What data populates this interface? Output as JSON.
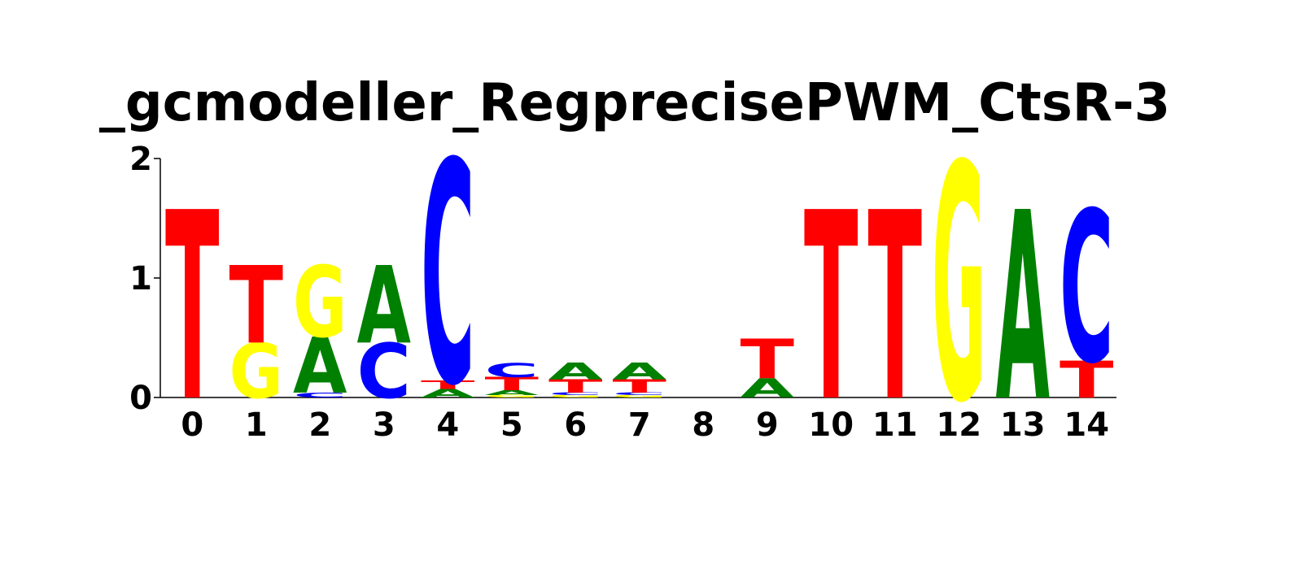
{
  "chart_data": {
    "type": "sequence-logo",
    "title": "_gcmodeller_RegprecisePWM_CtsR-3",
    "xlabel": "",
    "ylabel": "",
    "ylim": [
      0,
      2
    ],
    "y_ticks": [
      0,
      1,
      2
    ],
    "x_ticks": [
      "0",
      "1",
      "2",
      "3",
      "4",
      "5",
      "6",
      "7",
      "8",
      "9",
      "10",
      "11",
      "12",
      "13",
      "14"
    ],
    "letter_colors": {
      "A": "#008000",
      "C": "#0000ff",
      "G": "#ffff00",
      "T": "#ff0000"
    },
    "positions": [
      {
        "x": 0,
        "letters": [
          {
            "letter": "T",
            "height": 1.58
          }
        ]
      },
      {
        "x": 1,
        "letters": [
          {
            "letter": "G",
            "height": 0.46
          },
          {
            "letter": "T",
            "height": 0.65
          }
        ]
      },
      {
        "x": 2,
        "letters": [
          {
            "letter": "C",
            "height": 0.04
          },
          {
            "letter": "A",
            "height": 0.47
          },
          {
            "letter": "G",
            "height": 0.6
          }
        ]
      },
      {
        "x": 3,
        "letters": [
          {
            "letter": "C",
            "height": 0.46
          },
          {
            "letter": "A",
            "height": 0.65
          }
        ]
      },
      {
        "x": 4,
        "letters": [
          {
            "letter": "A",
            "height": 0.07
          },
          {
            "letter": "T",
            "height": 0.07
          },
          {
            "letter": "C",
            "height": 1.86
          }
        ]
      },
      {
        "x": 5,
        "letters": [
          {
            "letter": "G",
            "height": 0.02
          },
          {
            "letter": "A",
            "height": 0.04
          },
          {
            "letter": "T",
            "height": 0.11
          },
          {
            "letter": "C",
            "height": 0.12
          }
        ]
      },
      {
        "x": 6,
        "letters": [
          {
            "letter": "G",
            "height": 0.02
          },
          {
            "letter": "C",
            "height": 0.02
          },
          {
            "letter": "T",
            "height": 0.11
          },
          {
            "letter": "A",
            "height": 0.14
          }
        ]
      },
      {
        "x": 7,
        "letters": [
          {
            "letter": "G",
            "height": 0.02
          },
          {
            "letter": "C",
            "height": 0.02
          },
          {
            "letter": "T",
            "height": 0.11
          },
          {
            "letter": "A",
            "height": 0.14
          }
        ]
      },
      {
        "x": 8,
        "letters": []
      },
      {
        "x": 9,
        "letters": [
          {
            "letter": "A",
            "height": 0.16
          },
          {
            "letter": "T",
            "height": 0.33
          }
        ]
      },
      {
        "x": 10,
        "letters": [
          {
            "letter": "T",
            "height": 1.58
          }
        ]
      },
      {
        "x": 11,
        "letters": [
          {
            "letter": "T",
            "height": 1.58
          }
        ]
      },
      {
        "x": 12,
        "letters": [
          {
            "letter": "G",
            "height": 1.98
          }
        ]
      },
      {
        "x": 13,
        "letters": [
          {
            "letter": "A",
            "height": 1.58
          }
        ]
      },
      {
        "x": 14,
        "letters": [
          {
            "letter": "T",
            "height": 0.31
          },
          {
            "letter": "C",
            "height": 1.27
          }
        ]
      }
    ]
  }
}
